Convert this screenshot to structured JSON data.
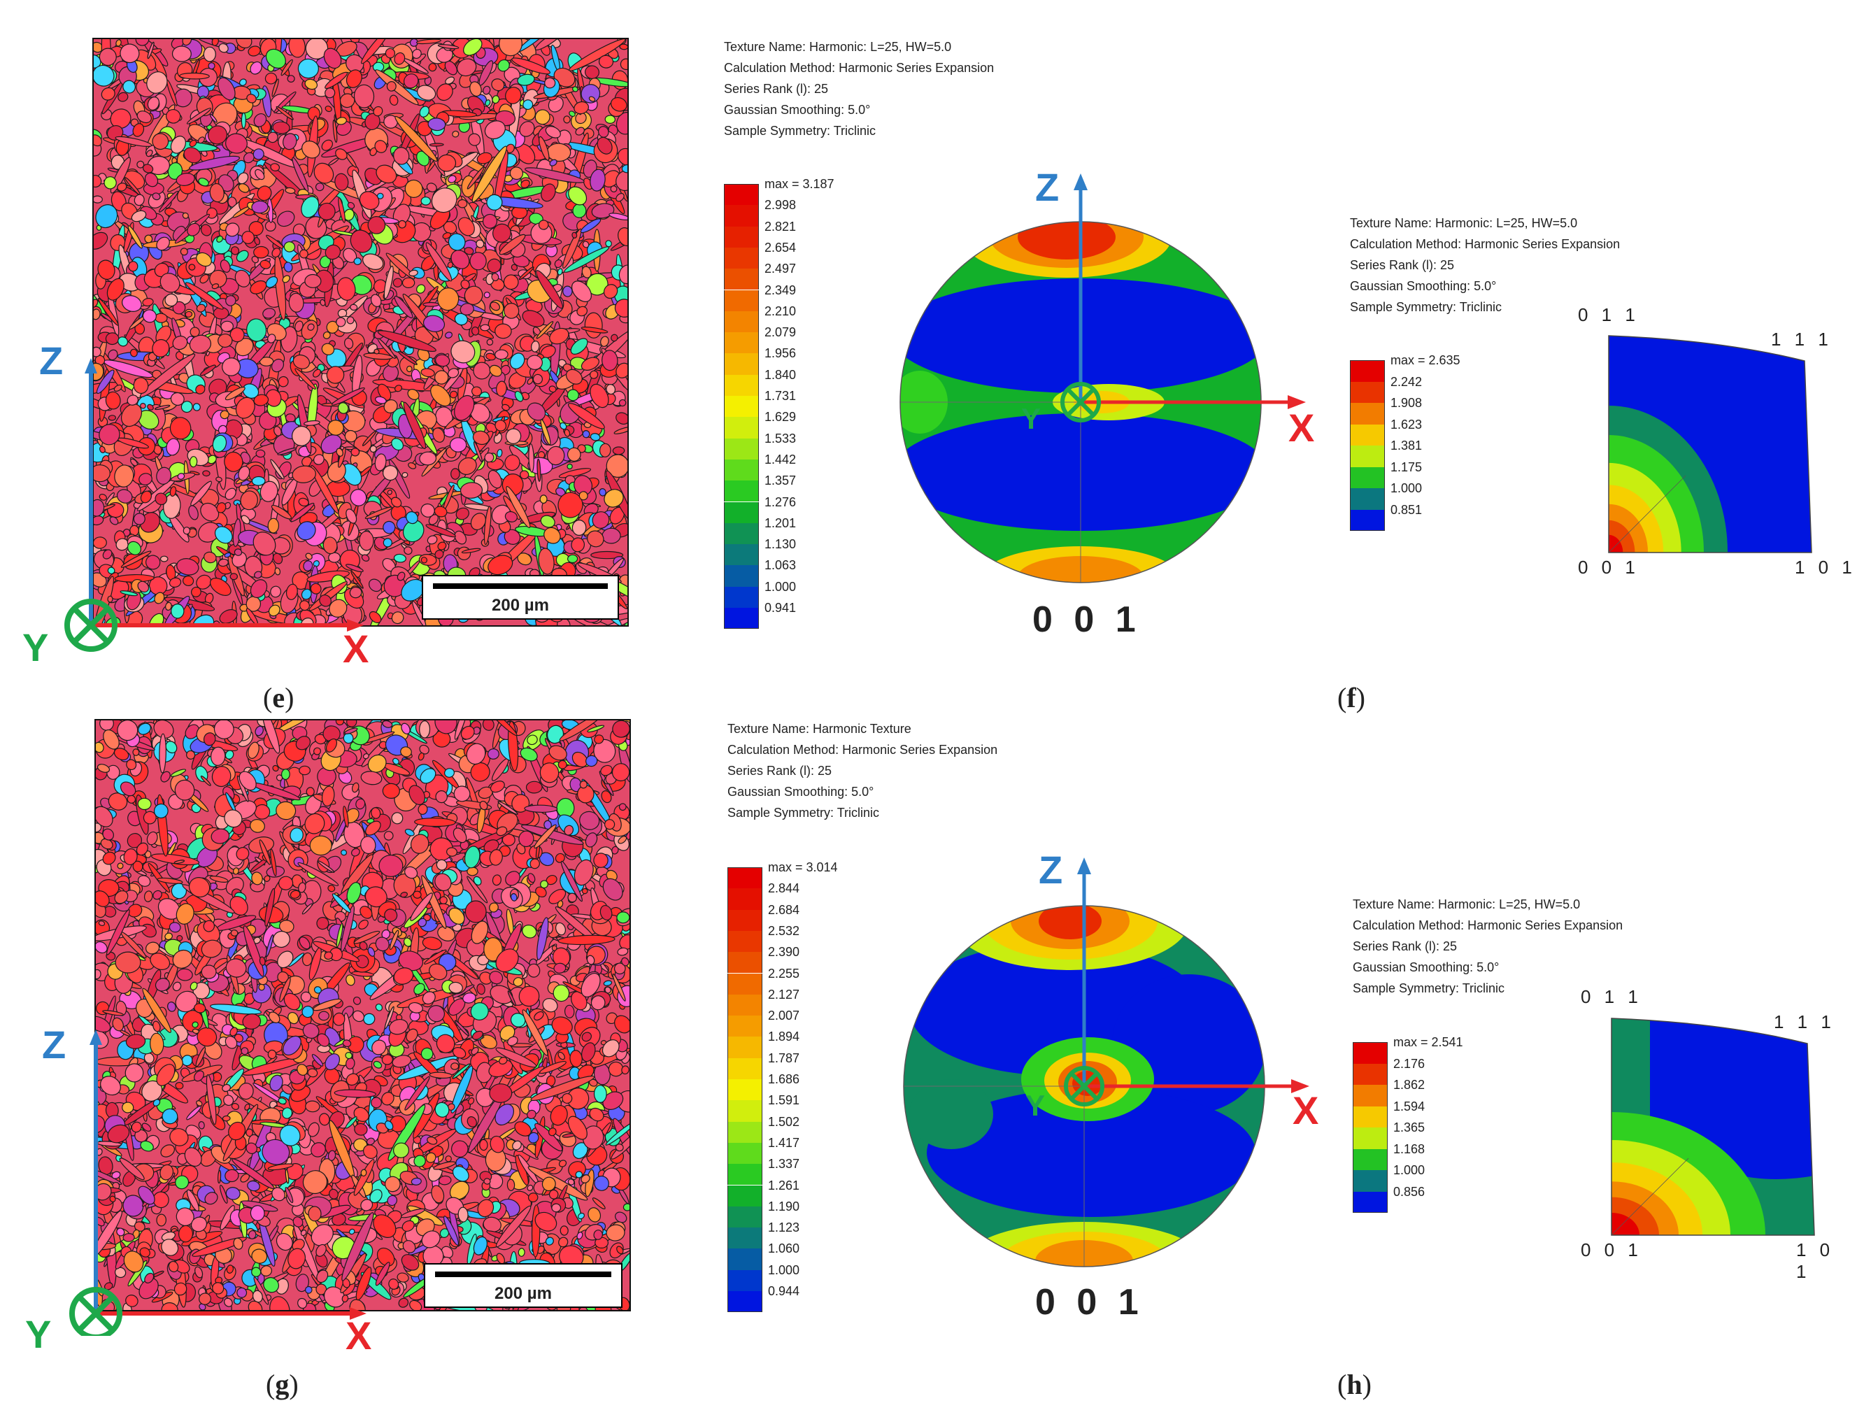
{
  "panels": {
    "e": {
      "label_open": "(",
      "label_letter": "e",
      "label_close": ")",
      "scalebar": "200 µm",
      "axes": {
        "z": "Z",
        "x": "X",
        "y": "Y"
      }
    },
    "f": {
      "label_open": "(",
      "label_letter": "f",
      "label_close": ")",
      "pf_info": [
        "Texture Name: Harmonic: L=25, HW=5.0",
        "Calculation Method: Harmonic Series Expansion",
        "Series Rank (l): 25",
        "Gaussian Smoothing: 5.0°",
        "Sample Symmetry: Triclinic"
      ],
      "pf_legend": [
        "max = 3.187",
        "2.998",
        "2.821",
        "2.654",
        "2.497",
        "2.349",
        "2.210",
        "2.079",
        "1.956",
        "1.840",
        "1.731",
        "1.629",
        "1.533",
        "1.442",
        "1.357",
        "1.276",
        "1.201",
        "1.130",
        "1.063",
        "1.000",
        "0.941"
      ],
      "pf_axes": {
        "z": "Z",
        "x": "X",
        "y": "Y"
      },
      "pf_label": "0 0 1",
      "ipf_info": [
        "Texture Name: Harmonic: L=25, HW=5.0",
        "Calculation Method: Harmonic Series Expansion",
        "Series Rank (l): 25",
        "Gaussian Smoothing: 5.0°",
        "Sample Symmetry: Triclinic"
      ],
      "ipf_legend": [
        "max = 2.635",
        "2.242",
        "1.908",
        "1.623",
        "1.381",
        "1.175",
        "1.000",
        "0.851"
      ],
      "ipf_corners": {
        "top_left": "0 1 1",
        "top_right": "1 1 1",
        "bottom_left": "0 0 1",
        "bottom_right": "1 0 1"
      }
    },
    "g": {
      "label_open": "(",
      "label_letter": "g",
      "label_close": ")",
      "scalebar": "200 µm",
      "axes": {
        "z": "Z",
        "x": "X",
        "y": "Y"
      }
    },
    "h": {
      "label_open": "(",
      "label_letter": "h",
      "label_close": ")",
      "pf_info": [
        "Texture Name: Harmonic Texture",
        "Calculation Method: Harmonic Series Expansion",
        "Series Rank (l): 25",
        "Gaussian Smoothing: 5.0°",
        "Sample Symmetry: Triclinic"
      ],
      "pf_legend": [
        "max = 3.014",
        "2.844",
        "2.684",
        "2.532",
        "2.390",
        "2.255",
        "2.127",
        "2.007",
        "1.894",
        "1.787",
        "1.686",
        "1.591",
        "1.502",
        "1.417",
        "1.337",
        "1.261",
        "1.190",
        "1.123",
        "1.060",
        "1.000",
        "0.944"
      ],
      "pf_axes": {
        "z": "Z",
        "x": "X",
        "y": "Y"
      },
      "pf_label": "0 0 1",
      "ipf_info": [
        "Texture Name: Harmonic: L=25, HW=5.0",
        "Calculation Method: Harmonic Series Expansion",
        "Series Rank (l): 25",
        "Gaussian Smoothing: 5.0°",
        "Sample Symmetry: Triclinic"
      ],
      "ipf_legend": [
        "max = 2.541",
        "2.176",
        "1.862",
        "1.594",
        "1.365",
        "1.168",
        "1.000",
        "0.856"
      ],
      "ipf_corners": {
        "top_left": "0 1 1",
        "top_right": "1 1 1",
        "bottom_left": "0 0 1",
        "bottom_right": "1 0 1"
      }
    }
  },
  "colors": {
    "axis_z": "#2f7fc8",
    "axis_x": "#e8262a",
    "axis_y": "#1ea84a"
  }
}
